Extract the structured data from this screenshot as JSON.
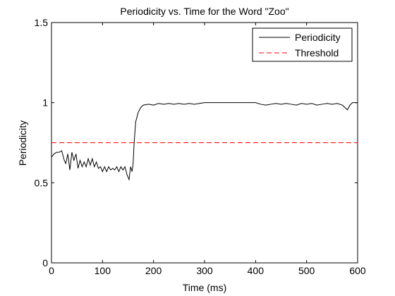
{
  "chart_data": {
    "type": "line",
    "title": "Periodicity vs. Time for the Word \"Zoo\"",
    "xlabel": "Time (ms)",
    "ylabel": "Periodicity",
    "xlim": [
      0,
      600
    ],
    "ylim": [
      0,
      1.5
    ],
    "xticks": [
      0,
      100,
      200,
      300,
      400,
      500,
      600
    ],
    "xtick_labels": [
      "0",
      "100",
      "200",
      "300",
      "400",
      "500",
      "600"
    ],
    "yticks": [
      0,
      0.5,
      1,
      1.5
    ],
    "ytick_labels": [
      "0",
      "0.5",
      "1",
      "1.5"
    ],
    "grid": false,
    "legend_position": "top-right",
    "series": [
      {
        "name": "Periodicity",
        "color": "#000000",
        "style": "solid",
        "x": [
          0,
          5,
          10,
          15,
          20,
          25,
          28,
          32,
          36,
          40,
          44,
          48,
          52,
          56,
          60,
          64,
          68,
          72,
          76,
          80,
          84,
          88,
          92,
          96,
          100,
          104,
          108,
          112,
          116,
          120,
          124,
          128,
          132,
          136,
          140,
          144,
          148,
          152,
          155,
          158,
          160,
          162,
          165,
          170,
          175,
          180,
          190,
          200,
          210,
          220,
          230,
          240,
          250,
          260,
          270,
          280,
          290,
          300,
          320,
          340,
          360,
          380,
          400,
          410,
          420,
          430,
          440,
          450,
          460,
          470,
          480,
          490,
          500,
          510,
          520,
          530,
          540,
          550,
          560,
          570,
          575,
          580,
          585,
          590,
          600
        ],
        "y": [
          0.66,
          0.68,
          0.69,
          0.69,
          0.7,
          0.64,
          0.62,
          0.68,
          0.58,
          0.69,
          0.64,
          0.68,
          0.59,
          0.64,
          0.6,
          0.63,
          0.6,
          0.65,
          0.61,
          0.65,
          0.6,
          0.63,
          0.59,
          0.6,
          0.57,
          0.6,
          0.57,
          0.6,
          0.58,
          0.59,
          0.58,
          0.6,
          0.57,
          0.6,
          0.58,
          0.6,
          0.55,
          0.52,
          0.6,
          0.57,
          0.62,
          0.75,
          0.88,
          0.94,
          0.97,
          0.985,
          0.99,
          0.985,
          0.995,
          0.99,
          0.995,
          0.99,
          0.995,
          0.99,
          0.995,
          0.99,
          0.995,
          1.0,
          1.0,
          1.0,
          1.0,
          1.0,
          1.0,
          0.99,
          0.985,
          0.99,
          0.995,
          0.99,
          0.995,
          0.99,
          0.985,
          0.995,
          0.99,
          0.995,
          0.985,
          0.99,
          0.995,
          0.99,
          0.995,
          0.985,
          0.97,
          0.955,
          0.985,
          1.0,
          1.0
        ]
      },
      {
        "name": "Threshold",
        "color": "#ff0000",
        "style": "dashed",
        "x": [
          0,
          600
        ],
        "y": [
          0.75,
          0.75
        ]
      }
    ]
  }
}
